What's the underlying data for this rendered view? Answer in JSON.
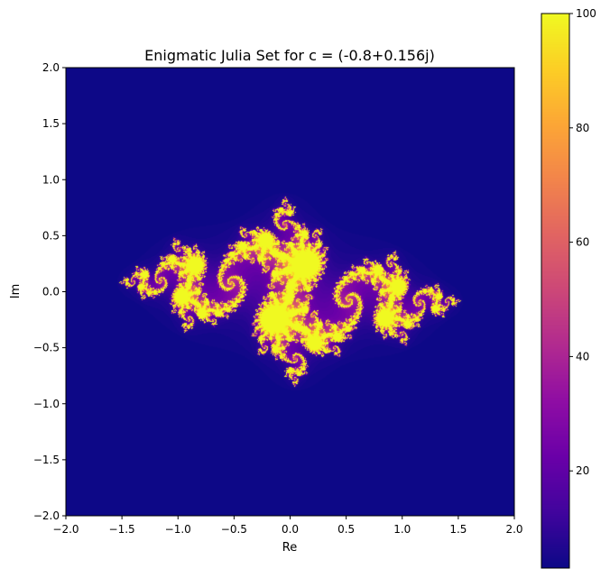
{
  "chart_data": {
    "type": "heatmap",
    "title": "Enigmatic Julia Set for c = (-0.8+0.156j)",
    "xlabel": "Re",
    "ylabel": "Im",
    "xlim": [
      -2.0,
      2.0
    ],
    "ylim": [
      -2.0,
      2.0
    ],
    "xticks": [
      "−2.0",
      "−1.5",
      "−1.0",
      "−0.5",
      "0.0",
      "0.5",
      "1.0",
      "1.5",
      "2.0"
    ],
    "yticks": [
      "−2.0",
      "−1.5",
      "−1.0",
      "−0.5",
      "0.0",
      "0.5",
      "1.0",
      "1.5",
      "2.0"
    ],
    "colormap": "plasma",
    "colorbar": {
      "range": [
        3,
        100
      ],
      "ticks": [
        "20",
        "40",
        "60",
        "80",
        "100"
      ]
    },
    "julia_constant": {
      "re": -0.8,
      "im": 0.156
    },
    "max_iterations": 100,
    "grid": false
  }
}
